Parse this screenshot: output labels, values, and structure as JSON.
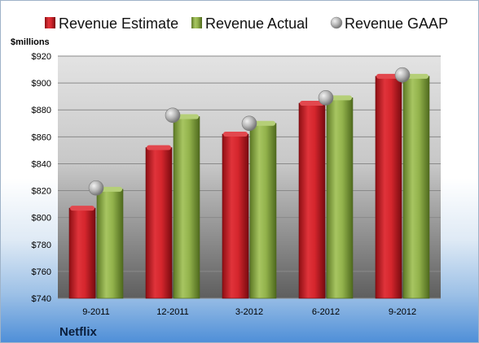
{
  "chart_data": {
    "type": "bar",
    "categories": [
      "9-2011",
      "12-2011",
      "3-2012",
      "6-2012",
      "9-2012"
    ],
    "series": [
      {
        "name": "Revenue Estimate",
        "kind": "bar",
        "color": "#cc1f27",
        "values": [
          807,
          852,
          862,
          885,
          905
        ]
      },
      {
        "name": "Revenue Actual",
        "kind": "bar",
        "color": "#8fb048",
        "values": [
          821,
          875,
          870,
          889,
          905
        ]
      },
      {
        "name": "Revenue GAAP",
        "kind": "marker",
        "color": "#a8a8a8",
        "values": [
          822,
          876,
          870,
          889,
          906
        ]
      }
    ],
    "ylabel": "$millions",
    "ylim": [
      740,
      920
    ],
    "yticks": [
      740,
      760,
      780,
      800,
      820,
      840,
      860,
      880,
      900,
      920
    ],
    "ytick_labels": [
      "$740",
      "$760",
      "$780",
      "$800",
      "$820",
      "$840",
      "$860",
      "$880",
      "$900",
      "$920"
    ],
    "grid": true,
    "legend": "top"
  },
  "footer": {
    "company": "Netflix"
  }
}
